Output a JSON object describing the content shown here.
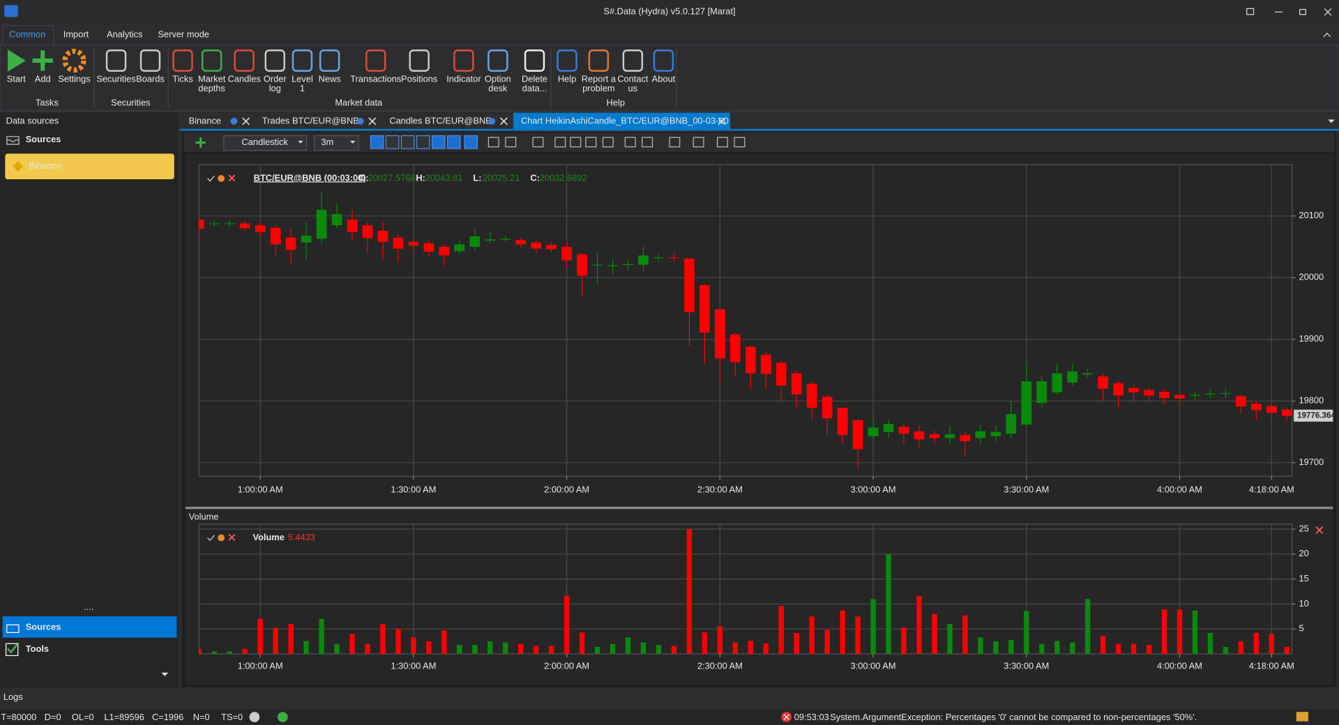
{
  "window": {
    "title": "S#.Data (Hydra) v5.0.127 [Marat]"
  },
  "menu_tabs": [
    "Common",
    "Import",
    "Analytics",
    "Server mode"
  ],
  "ribbon": {
    "groups": [
      {
        "label": "Tasks",
        "buttons": [
          [
            "Start"
          ],
          [
            "Add"
          ],
          [
            "Settings"
          ]
        ]
      },
      {
        "label": "Securities",
        "buttons": [
          [
            "Securities"
          ],
          [
            "Boards"
          ]
        ]
      },
      {
        "label": "Market data",
        "buttons": [
          [
            "Ticks"
          ],
          [
            "Market",
            "depths"
          ],
          [
            "Candles"
          ],
          [
            "Order",
            "log"
          ],
          [
            "Level",
            "1"
          ],
          [
            "News"
          ],
          [
            "Transactions"
          ],
          [
            "Positions"
          ],
          [
            "Indicator"
          ],
          [
            "Option",
            "desk"
          ],
          [
            "Delete",
            "data..."
          ]
        ]
      },
      {
        "label": "Help",
        "buttons": [
          [
            "Help"
          ],
          [
            "Report a",
            "problem"
          ],
          [
            "Contact",
            "us"
          ],
          [
            "About"
          ]
        ]
      }
    ]
  },
  "sidebar": {
    "header": "Data sources",
    "section": "Sources",
    "items": [
      "Binance"
    ],
    "nav": [
      "Sources",
      "Tools"
    ]
  },
  "doc_tabs": [
    "Binance",
    "Trades BTC/EUR@BNB",
    "Candles BTC/EUR@BNB",
    "Chart HeikinAshiCandle_BTC/EUR@BNB_00-03-00"
  ],
  "chart_toolbar": {
    "style": "Candlestick",
    "timeframe": "3m"
  },
  "chart_data": [
    {
      "type": "candlestick",
      "up_color": "#0a8a0a",
      "down_color": "#ff0000",
      "grid": true,
      "legend": {
        "security": "BTC/EUR@BNB (00:03:00)",
        "fields": [
          {
            "label": "O:",
            "value": 20027.5768
          },
          {
            "label": "H:",
            "value": 20043.81
          },
          {
            "label": "L:",
            "value": 20025.21
          },
          {
            "label": "C:",
            "value": 20032.6892
          }
        ]
      },
      "last_price": 19776.364,
      "x": [
        48,
        51,
        54,
        57,
        60,
        63,
        66,
        69,
        72,
        75,
        78,
        81,
        84,
        87,
        90,
        93,
        96,
        99,
        102,
        105,
        108,
        111,
        114,
        117,
        120,
        123,
        126,
        129,
        132,
        135,
        138,
        141,
        144,
        147,
        150,
        153,
        156,
        159,
        162,
        165,
        168,
        171,
        174,
        177,
        180,
        183,
        186,
        189,
        192,
        195,
        198,
        201,
        204,
        207,
        210,
        213,
        216,
        219,
        222,
        225,
        228,
        231,
        234,
        237,
        240,
        243,
        246,
        249,
        252,
        255,
        258,
        261
      ],
      "open": [
        20094,
        20087,
        20087,
        20088,
        20085,
        20081,
        20065,
        20057,
        20063,
        20085,
        20094,
        20085,
        20076,
        20065,
        20058,
        20056,
        20050,
        20043,
        20050,
        20060,
        20062,
        20061,
        20057,
        20053,
        20050,
        20038,
        20020,
        20019,
        20021,
        20021,
        20032,
        20033,
        20031,
        19988,
        19949,
        19908,
        19888,
        19875,
        19862,
        19845,
        19828,
        19807,
        19789,
        19769,
        19743,
        19750,
        19758,
        19751,
        19746,
        19740,
        19745,
        19740,
        19743,
        19747,
        19762,
        19797,
        19814,
        19830,
        19843,
        19840,
        19829,
        19821,
        19818,
        19815,
        19810,
        19809,
        19811,
        19812,
        19808,
        19796,
        19792,
        19786
      ],
      "high": [
        20104,
        20093,
        20093,
        20092,
        20090,
        20085,
        20080,
        20090,
        20140,
        20120,
        20110,
        20090,
        20090,
        20070,
        20062,
        20060,
        20055,
        20060,
        20080,
        20075,
        20068,
        20065,
        20060,
        20058,
        20058,
        20040,
        20040,
        20030,
        20030,
        20050,
        20038,
        20040,
        20031,
        19990,
        19950,
        19910,
        19890,
        19880,
        19865,
        19850,
        19832,
        19810,
        19790,
        19770,
        19770,
        19770,
        19765,
        19760,
        19752,
        19760,
        19750,
        19760,
        19760,
        19800,
        19862,
        19840,
        19860,
        19860,
        19852,
        19845,
        19833,
        19825,
        19822,
        19820,
        19815,
        19815,
        19818,
        19820,
        19810,
        19800,
        19795,
        19790
      ],
      "low": [
        20056,
        20082,
        20082,
        20076,
        20065,
        20037,
        20020,
        20030,
        20055,
        20080,
        20060,
        20040,
        20030,
        20025,
        20045,
        20035,
        20020,
        20038,
        20045,
        20056,
        20058,
        20048,
        20040,
        20040,
        20015,
        19970,
        19990,
        20005,
        20012,
        20010,
        20026,
        20025,
        19890,
        19860,
        19830,
        19840,
        19820,
        19820,
        19800,
        19790,
        19770,
        19745,
        19730,
        19690,
        19735,
        19740,
        19730,
        19725,
        19730,
        19730,
        19710,
        19730,
        19735,
        19740,
        19760,
        19790,
        19810,
        19825,
        19838,
        19800,
        19790,
        19800,
        19800,
        19795,
        19795,
        19802,
        19804,
        19805,
        19780,
        19770,
        19772,
        19768
      ],
      "close": [
        20079,
        20088,
        20088,
        20080,
        20074,
        20054,
        20045,
        20068,
        20110,
        20103,
        20074,
        20064,
        20058,
        20047,
        20052,
        20042,
        20036,
        20054,
        20067,
        20062,
        20063,
        20054,
        20047,
        20046,
        20028,
        20003,
        20021,
        20020,
        20022,
        20036,
        20033,
        20032,
        19944,
        19911,
        19869,
        19863,
        19845,
        19844,
        19825,
        19811,
        19789,
        19772,
        19745,
        19722,
        19757,
        19763,
        19747,
        19738,
        19740,
        19746,
        19735,
        19751,
        19750,
        19779,
        19832,
        19832,
        19845,
        19848,
        19845,
        19820,
        19809,
        19814,
        19809,
        19805,
        19804,
        19810,
        19812,
        19813,
        19791,
        19785,
        19781,
        19776
      ],
      "xlim": [
        48,
        262
      ],
      "xticks": [
        {
          "value": 60,
          "label": "1:00:00 AM"
        },
        {
          "value": 90,
          "label": "1:30:00 AM"
        },
        {
          "value": 120,
          "label": "2:00:00 AM"
        },
        {
          "value": 150,
          "label": "2:30:00 AM"
        },
        {
          "value": 180,
          "label": "3:00:00 AM"
        },
        {
          "value": 210,
          "label": "3:30:00 AM"
        },
        {
          "value": 240,
          "label": "4:00:00 AM"
        },
        {
          "value": 258,
          "label": "4:18:00 AM"
        }
      ],
      "ylim": [
        19678,
        20183
      ],
      "yticks": [
        19700,
        19800,
        19900,
        20000,
        20100
      ]
    },
    {
      "type": "bar",
      "title": "Volume",
      "series_name": "Volume",
      "legend_value": 5.4433,
      "grid": true,
      "x": [
        48,
        51,
        54,
        57,
        60,
        63,
        66,
        69,
        72,
        75,
        78,
        81,
        84,
        87,
        90,
        93,
        96,
        99,
        102,
        105,
        108,
        111,
        114,
        117,
        120,
        123,
        126,
        129,
        132,
        135,
        138,
        141,
        144,
        147,
        150,
        153,
        156,
        159,
        162,
        165,
        168,
        171,
        174,
        177,
        180,
        183,
        186,
        189,
        192,
        195,
        198,
        201,
        204,
        207,
        210,
        213,
        216,
        219,
        222,
        225,
        228,
        231,
        234,
        237,
        240,
        243,
        246,
        249,
        252,
        255,
        258,
        261
      ],
      "values": [
        1,
        0.5,
        0.5,
        1,
        7,
        5.2,
        6,
        2.6,
        7,
        2,
        4,
        2,
        6,
        5,
        3.3,
        2.5,
        4.7,
        1.8,
        1.8,
        2.5,
        2.3,
        2,
        1.6,
        1.6,
        11.6,
        4.3,
        1.4,
        2,
        3.3,
        2.3,
        1.8,
        1.6,
        25,
        4.3,
        5.5,
        2.3,
        2.6,
        2.1,
        9.6,
        4.2,
        7.5,
        4.8,
        8.7,
        7.5,
        11,
        20,
        5.3,
        11.6,
        8,
        6,
        7.7,
        3.3,
        2.5,
        2.8,
        8.6,
        2,
        2.6,
        2.3,
        11,
        3.6,
        2,
        2,
        1.8,
        8.9,
        8.9,
        8.7,
        4.2,
        1.4,
        2.5,
        4.2,
        4,
        1.4
      ],
      "xlim": [
        48,
        262
      ],
      "xticks": [
        {
          "value": 60,
          "label": "1:00:00 AM"
        },
        {
          "value": 90,
          "label": "1:30:00 AM"
        },
        {
          "value": 120,
          "label": "2:00:00 AM"
        },
        {
          "value": 150,
          "label": "2:30:00 AM"
        },
        {
          "value": 180,
          "label": "3:00:00 AM"
        },
        {
          "value": 210,
          "label": "3:30:00 AM"
        },
        {
          "value": 240,
          "label": "4:00:00 AM"
        },
        {
          "value": 258,
          "label": "4:18:00 AM"
        }
      ],
      "ylim": [
        0,
        26
      ],
      "yticks": [
        5,
        10,
        15,
        20,
        25
      ]
    }
  ],
  "status_bar": {
    "logs": "Logs",
    "counters": [
      "T=80000",
      "D=0",
      "OL=0",
      "L1=89596",
      "C=1996",
      "N=0",
      "TS=0"
    ],
    "error_time": "09:53:03",
    "error_message": "System.ArgumentException: Percentages '0' cannot be compared to non-percentages '50%'."
  }
}
